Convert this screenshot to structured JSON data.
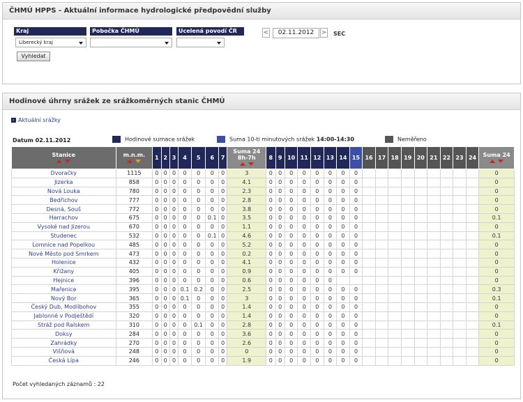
{
  "app": {
    "title": "ČHMÚ HPPS - Aktuální informace hydrologické předpovědní služby"
  },
  "filters": {
    "kraj_label": "Kraj",
    "kraj_value": "Liberecký kraj",
    "pobocka_label": "Pobočka ČHMÚ",
    "pobocka_value": "",
    "povodi_label": "Ucelená povodí ČR",
    "povodi_value": "",
    "search_button": "Vyhledat",
    "prev": "<",
    "date": "02.11.2012",
    "next": ">",
    "timezone": "SEC"
  },
  "section": {
    "title": "Hodinové úhrny srážek ze srážkoměrných stanic ČHMÚ",
    "link": "Aktuální srážky",
    "datum": "Datum 02.11.2012",
    "legend": [
      {
        "label": "Hodinové sumace srážek",
        "color": "#20285a"
      },
      {
        "label": "Suma 10-ti minutových srážek",
        "bold": "14:00-14:30",
        "color": "#3a4fa5"
      },
      {
        "label": "Neměřeno",
        "color": "#555555"
      }
    ],
    "count_label": "Počet vyhledaných záznamů : 22"
  },
  "table": {
    "col_station": "Stanice",
    "col_mnm": "m.n.m.",
    "col_sum_title": "Suma 24",
    "col_sum_sub": "8h-7h",
    "hours_a": [
      "1",
      "2",
      "3",
      "4",
      "5",
      "6",
      "7"
    ],
    "hours_b": [
      "8",
      "9",
      "10",
      "11",
      "12",
      "13",
      "14",
      "15"
    ],
    "hours_c": [
      "16",
      "17",
      "18",
      "19",
      "20",
      "21",
      "22",
      "23",
      "24"
    ],
    "col_sum24": "Suma 24",
    "rows": [
      {
        "name": "Dvoračky",
        "mnm": "1115",
        "a": [
          "0",
          "0",
          "0",
          "0",
          "0",
          "0",
          "0"
        ],
        "sum": "3",
        "b": [
          "0",
          "0",
          "0",
          "0",
          "0",
          "0",
          "0",
          "0"
        ],
        "s24": "0"
      },
      {
        "name": "Jizerka",
        "mnm": "858",
        "a": [
          "0",
          "0",
          "0",
          "0",
          "0",
          "0",
          "0"
        ],
        "sum": "4.1",
        "b": [
          "0",
          "0",
          "0",
          "0",
          "0",
          "0",
          "0",
          "0"
        ],
        "s24": "0"
      },
      {
        "name": "Nová Louka",
        "mnm": "780",
        "a": [
          "0",
          "0",
          "0",
          "0",
          "0",
          "0",
          "0"
        ],
        "sum": "2.3",
        "b": [
          "0",
          "0",
          "0",
          "0",
          "0",
          "0",
          "0",
          "0"
        ],
        "s24": "0"
      },
      {
        "name": "Bedřichov",
        "mnm": "777",
        "a": [
          "0",
          "0",
          "0",
          "0",
          "0",
          "0",
          "0"
        ],
        "sum": "2.8",
        "b": [
          "0",
          "0",
          "0",
          "0",
          "0",
          "0",
          "0",
          "0"
        ],
        "s24": "0"
      },
      {
        "name": "Desná, Souš",
        "mnm": "772",
        "a": [
          "0",
          "0",
          "0",
          "0",
          "0",
          "0",
          "0"
        ],
        "sum": "3.8",
        "b": [
          "0",
          "0",
          "0",
          "0",
          "0",
          "0",
          "0",
          "0"
        ],
        "s24": "0"
      },
      {
        "name": "Harrachov",
        "mnm": "675",
        "a": [
          "0",
          "0",
          "0",
          "0",
          "0",
          "0.1",
          "0"
        ],
        "sum": "3.5",
        "b": [
          "0",
          "0",
          "0",
          "0",
          "0",
          "0",
          "0",
          "0"
        ],
        "s24": "0.1"
      },
      {
        "name": "Vysoké nad Jizerou",
        "mnm": "670",
        "a": [
          "0",
          "0",
          "0",
          "0",
          "0",
          "0",
          "0"
        ],
        "sum": "1.1",
        "b": [
          "0",
          "0",
          "0",
          "0",
          "0",
          "0",
          "0",
          "0"
        ],
        "s24": "0"
      },
      {
        "name": "Studenec",
        "mnm": "532",
        "a": [
          "0",
          "0",
          "0",
          "0",
          "0",
          "0.1",
          "0"
        ],
        "sum": "4.6",
        "b": [
          "0",
          "0",
          "0",
          "0",
          "0",
          "0",
          "0",
          "0"
        ],
        "s24": "0.1"
      },
      {
        "name": "Lomnice nad Popelkou",
        "mnm": "485",
        "a": [
          "0",
          "0",
          "0",
          "0",
          "0",
          "0",
          "0"
        ],
        "sum": "5.2",
        "b": [
          "0",
          "0",
          "0",
          "0",
          "0",
          "0",
          "0",
          "0"
        ],
        "s24": "0"
      },
      {
        "name": "Nové Město pod Smrkem",
        "mnm": "473",
        "a": [
          "0",
          "0",
          "0",
          "0",
          "0",
          "0",
          "0"
        ],
        "sum": "0.2",
        "b": [
          "0",
          "0",
          "0",
          "0",
          "0",
          "0",
          "0",
          "0"
        ],
        "s24": "0"
      },
      {
        "name": "Holenice",
        "mnm": "432",
        "a": [
          "0",
          "0",
          "0",
          "0",
          "0",
          "0",
          "0"
        ],
        "sum": "4.1",
        "b": [
          "0",
          "0",
          "0",
          "0",
          "0",
          "0",
          "0",
          "0"
        ],
        "s24": "0"
      },
      {
        "name": "Křižany",
        "mnm": "405",
        "a": [
          "0",
          "0",
          "0",
          "0",
          "0",
          "0",
          "0"
        ],
        "sum": "0.9",
        "b": [
          "0",
          "0",
          "0",
          "0",
          "0",
          "0",
          "0",
          "0"
        ],
        "s24": "0"
      },
      {
        "name": "Hejnice",
        "mnm": "396",
        "a": [
          "0",
          "0",
          "0",
          "0",
          "0",
          "0",
          "0"
        ],
        "sum": "0.6",
        "b": [
          "0",
          "0",
          "0",
          "0",
          "0",
          "0",
          "",
          ""
        ],
        "s24": "0"
      },
      {
        "name": "Mařenice",
        "mnm": "395",
        "a": [
          "0",
          "0",
          "0",
          "0.1",
          "0.2",
          "0",
          "0"
        ],
        "sum": "2.5",
        "b": [
          "0",
          "0",
          "0",
          "0",
          "0",
          "0",
          "0",
          "0"
        ],
        "s24": "0.3"
      },
      {
        "name": "Nový Bor",
        "mnm": "365",
        "a": [
          "0",
          "0",
          "0",
          "0.1",
          "0",
          "0",
          "0"
        ],
        "sum": "3",
        "b": [
          "0",
          "0",
          "0",
          "0",
          "0",
          "0",
          "0",
          "0"
        ],
        "s24": "0.1"
      },
      {
        "name": "Český Dub, Modlibohov",
        "mnm": "355",
        "a": [
          "0",
          "0",
          "0",
          "0",
          "0",
          "0",
          "0"
        ],
        "sum": "1.4",
        "b": [
          "0",
          "0",
          "0",
          "0",
          "0",
          "0",
          "0",
          "0"
        ],
        "s24": "0"
      },
      {
        "name": "Jablonné v Podještědí",
        "mnm": "320",
        "a": [
          "0",
          "0",
          "0",
          "0",
          "0",
          "0",
          "0"
        ],
        "sum": "1.4",
        "b": [
          "0",
          "0",
          "0",
          "0",
          "0",
          "0",
          "0",
          "0"
        ],
        "s24": "0"
      },
      {
        "name": "Stráž pod Ralskem",
        "mnm": "310",
        "a": [
          "0",
          "0",
          "0",
          "0",
          "0.1",
          "0",
          "0"
        ],
        "sum": "2.8",
        "b": [
          "0",
          "0",
          "0",
          "0",
          "0",
          "0",
          "0",
          "0"
        ],
        "s24": "0.1"
      },
      {
        "name": "Doksy",
        "mnm": "284",
        "a": [
          "0",
          "0",
          "0",
          "0",
          "0",
          "0",
          "0"
        ],
        "sum": "3.6",
        "b": [
          "0",
          "0",
          "0",
          "0",
          "0",
          "0",
          "0",
          "0"
        ],
        "s24": "0"
      },
      {
        "name": "Zahrádky",
        "mnm": "270",
        "a": [
          "0",
          "0",
          "0",
          "0",
          "0",
          "0",
          "0"
        ],
        "sum": "2.6",
        "b": [
          "0",
          "0",
          "0",
          "0",
          "0",
          "0",
          "0",
          "0"
        ],
        "s24": "0"
      },
      {
        "name": "Višňová",
        "mnm": "248",
        "a": [
          "0",
          "0",
          "0",
          "0",
          "0",
          "0",
          "0"
        ],
        "sum": "0",
        "b": [
          "0",
          "0",
          "0",
          "0",
          "0",
          "0",
          "0",
          "0"
        ],
        "s24": "0"
      },
      {
        "name": "Česká Lípa",
        "mnm": "246",
        "a": [
          "0",
          "0",
          "0",
          "0",
          "0",
          "0",
          "0"
        ],
        "sum": "1.9",
        "b": [
          "0",
          "0",
          "0",
          "0",
          "0",
          "0",
          "0",
          "0"
        ],
        "s24": "0"
      }
    ]
  }
}
